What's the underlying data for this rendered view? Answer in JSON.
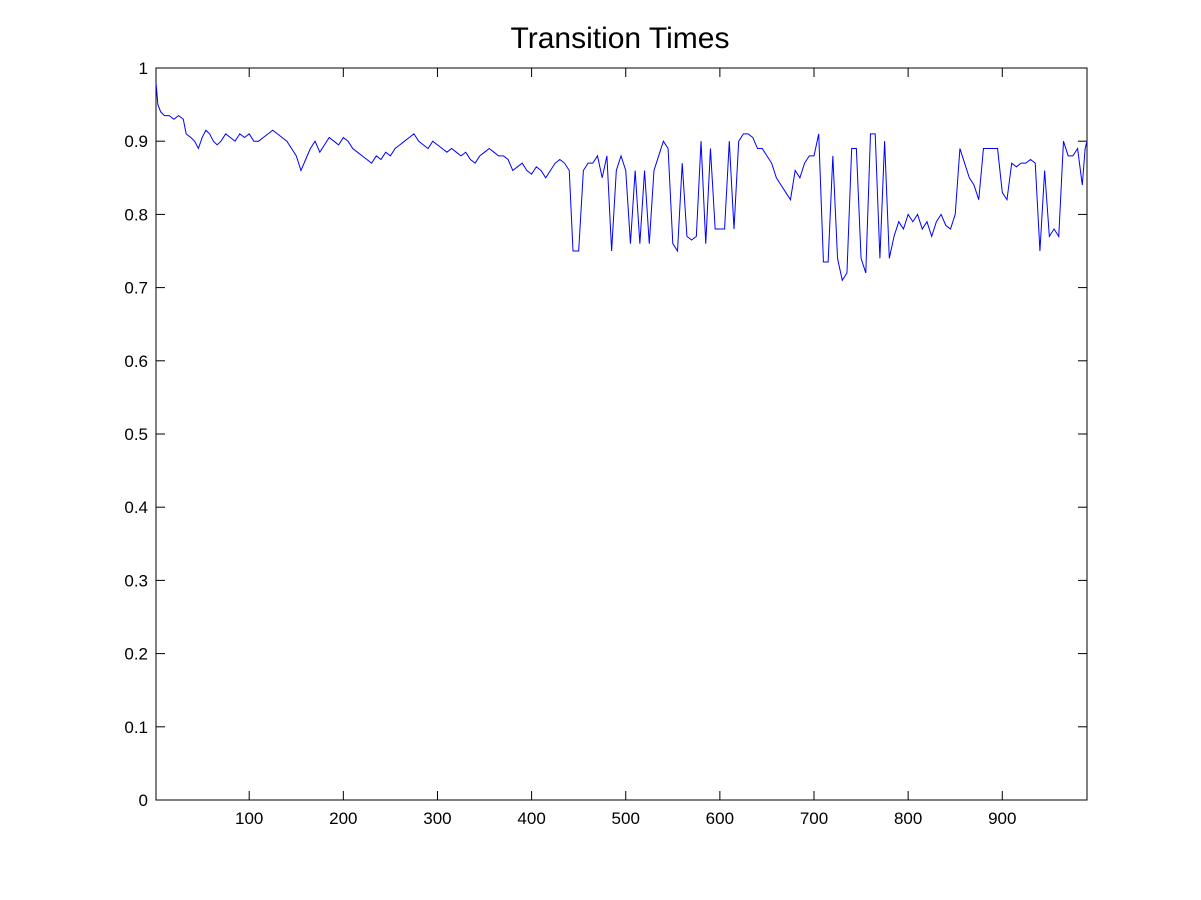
{
  "chart_data": {
    "type": "line",
    "title": "Transition Times",
    "xlabel": "",
    "ylabel": "",
    "xlim": [
      1,
      990
    ],
    "ylim": [
      0,
      1
    ],
    "x_ticks": [
      100,
      200,
      300,
      400,
      500,
      600,
      700,
      800,
      900
    ],
    "y_ticks": [
      0,
      0.1,
      0.2,
      0.3,
      0.4,
      0.5,
      0.6,
      0.7,
      0.8,
      0.9,
      1
    ],
    "x_tick_labels": [
      "100",
      "200",
      "300",
      "400",
      "500",
      "600",
      "700",
      "800",
      "900"
    ],
    "y_tick_labels": [
      "0",
      "0.1",
      "0.2",
      "0.3",
      "0.4",
      "0.5",
      "0.6",
      "0.7",
      "0.8",
      "0.9",
      "1"
    ],
    "grid": false,
    "line_color": "#0000ff",
    "series": [
      {
        "points": [
          [
            1,
            0.98
          ],
          [
            3,
            0.95
          ],
          [
            6,
            0.94
          ],
          [
            10,
            0.935
          ],
          [
            15,
            0.935
          ],
          [
            20,
            0.93
          ],
          [
            25,
            0.935
          ],
          [
            30,
            0.93
          ],
          [
            33,
            0.91
          ],
          [
            38,
            0.905
          ],
          [
            42,
            0.9
          ],
          [
            46,
            0.89
          ],
          [
            50,
            0.905
          ],
          [
            54,
            0.915
          ],
          [
            58,
            0.91
          ],
          [
            62,
            0.9
          ],
          [
            66,
            0.895
          ],
          [
            70,
            0.9
          ],
          [
            75,
            0.91
          ],
          [
            80,
            0.905
          ],
          [
            85,
            0.9
          ],
          [
            90,
            0.91
          ],
          [
            95,
            0.905
          ],
          [
            100,
            0.91
          ],
          [
            105,
            0.9
          ],
          [
            110,
            0.9
          ],
          [
            115,
            0.905
          ],
          [
            120,
            0.91
          ],
          [
            125,
            0.915
          ],
          [
            130,
            0.91
          ],
          [
            135,
            0.905
          ],
          [
            140,
            0.9
          ],
          [
            145,
            0.89
          ],
          [
            150,
            0.88
          ],
          [
            155,
            0.86
          ],
          [
            160,
            0.875
          ],
          [
            165,
            0.89
          ],
          [
            170,
            0.9
          ],
          [
            175,
            0.885
          ],
          [
            180,
            0.895
          ],
          [
            185,
            0.905
          ],
          [
            190,
            0.9
          ],
          [
            195,
            0.895
          ],
          [
            200,
            0.905
          ],
          [
            205,
            0.9
          ],
          [
            210,
            0.89
          ],
          [
            215,
            0.885
          ],
          [
            220,
            0.88
          ],
          [
            225,
            0.875
          ],
          [
            230,
            0.87
          ],
          [
            235,
            0.88
          ],
          [
            240,
            0.875
          ],
          [
            245,
            0.885
          ],
          [
            250,
            0.88
          ],
          [
            255,
            0.89
          ],
          [
            260,
            0.895
          ],
          [
            265,
            0.9
          ],
          [
            270,
            0.905
          ],
          [
            275,
            0.91
          ],
          [
            280,
            0.9
          ],
          [
            285,
            0.895
          ],
          [
            290,
            0.89
          ],
          [
            295,
            0.9
          ],
          [
            300,
            0.895
          ],
          [
            305,
            0.89
          ],
          [
            310,
            0.885
          ],
          [
            315,
            0.89
          ],
          [
            320,
            0.885
          ],
          [
            325,
            0.88
          ],
          [
            330,
            0.885
          ],
          [
            335,
            0.875
          ],
          [
            340,
            0.87
          ],
          [
            345,
            0.88
          ],
          [
            350,
            0.885
          ],
          [
            355,
            0.89
          ],
          [
            360,
            0.885
          ],
          [
            365,
            0.88
          ],
          [
            370,
            0.88
          ],
          [
            375,
            0.875
          ],
          [
            380,
            0.86
          ],
          [
            385,
            0.865
          ],
          [
            390,
            0.87
          ],
          [
            395,
            0.86
          ],
          [
            400,
            0.855
          ],
          [
            405,
            0.865
          ],
          [
            410,
            0.86
          ],
          [
            415,
            0.85
          ],
          [
            420,
            0.86
          ],
          [
            425,
            0.87
          ],
          [
            430,
            0.875
          ],
          [
            435,
            0.87
          ],
          [
            440,
            0.86
          ],
          [
            444,
            0.75
          ],
          [
            450,
            0.75
          ],
          [
            455,
            0.86
          ],
          [
            460,
            0.87
          ],
          [
            465,
            0.87
          ],
          [
            470,
            0.88
          ],
          [
            475,
            0.85
          ],
          [
            480,
            0.88
          ],
          [
            485,
            0.75
          ],
          [
            490,
            0.86
          ],
          [
            495,
            0.88
          ],
          [
            500,
            0.86
          ],
          [
            505,
            0.76
          ],
          [
            510,
            0.86
          ],
          [
            515,
            0.76
          ],
          [
            520,
            0.86
          ],
          [
            525,
            0.76
          ],
          [
            530,
            0.86
          ],
          [
            535,
            0.88
          ],
          [
            540,
            0.9
          ],
          [
            545,
            0.89
          ],
          [
            550,
            0.76
          ],
          [
            555,
            0.75
          ],
          [
            560,
            0.87
          ],
          [
            565,
            0.77
          ],
          [
            570,
            0.765
          ],
          [
            575,
            0.77
          ],
          [
            580,
            0.9
          ],
          [
            585,
            0.76
          ],
          [
            590,
            0.89
          ],
          [
            595,
            0.78
          ],
          [
            600,
            0.78
          ],
          [
            605,
            0.78
          ],
          [
            610,
            0.9
          ],
          [
            615,
            0.78
          ],
          [
            620,
            0.9
          ],
          [
            625,
            0.91
          ],
          [
            630,
            0.91
          ],
          [
            635,
            0.905
          ],
          [
            640,
            0.89
          ],
          [
            645,
            0.89
          ],
          [
            650,
            0.88
          ],
          [
            655,
            0.87
          ],
          [
            660,
            0.85
          ],
          [
            665,
            0.84
          ],
          [
            670,
            0.83
          ],
          [
            675,
            0.82
          ],
          [
            680,
            0.86
          ],
          [
            685,
            0.85
          ],
          [
            690,
            0.87
          ],
          [
            695,
            0.88
          ],
          [
            700,
            0.88
          ],
          [
            705,
            0.91
          ],
          [
            710,
            0.735
          ],
          [
            715,
            0.735
          ],
          [
            720,
            0.88
          ],
          [
            725,
            0.74
          ],
          [
            730,
            0.71
          ],
          [
            735,
            0.72
          ],
          [
            740,
            0.89
          ],
          [
            745,
            0.89
          ],
          [
            750,
            0.74
          ],
          [
            755,
            0.72
          ],
          [
            760,
            0.91
          ],
          [
            765,
            0.91
          ],
          [
            770,
            0.74
          ],
          [
            775,
            0.9
          ],
          [
            780,
            0.74
          ],
          [
            785,
            0.77
          ],
          [
            790,
            0.79
          ],
          [
            795,
            0.78
          ],
          [
            800,
            0.8
          ],
          [
            805,
            0.79
          ],
          [
            810,
            0.8
          ],
          [
            815,
            0.78
          ],
          [
            820,
            0.79
          ],
          [
            825,
            0.77
          ],
          [
            830,
            0.79
          ],
          [
            835,
            0.8
          ],
          [
            840,
            0.785
          ],
          [
            845,
            0.78
          ],
          [
            850,
            0.8
          ],
          [
            855,
            0.89
          ],
          [
            860,
            0.87
          ],
          [
            865,
            0.85
          ],
          [
            870,
            0.84
          ],
          [
            875,
            0.82
          ],
          [
            880,
            0.89
          ],
          [
            885,
            0.89
          ],
          [
            890,
            0.89
          ],
          [
            895,
            0.89
          ],
          [
            900,
            0.83
          ],
          [
            905,
            0.82
          ],
          [
            910,
            0.87
          ],
          [
            915,
            0.865
          ],
          [
            920,
            0.87
          ],
          [
            925,
            0.87
          ],
          [
            930,
            0.875
          ],
          [
            935,
            0.87
          ],
          [
            940,
            0.75
          ],
          [
            945,
            0.86
          ],
          [
            950,
            0.77
          ],
          [
            955,
            0.78
          ],
          [
            960,
            0.77
          ],
          [
            965,
            0.9
          ],
          [
            970,
            0.88
          ],
          [
            975,
            0.88
          ],
          [
            980,
            0.89
          ],
          [
            985,
            0.84
          ],
          [
            988,
            0.89
          ],
          [
            990,
            0.9
          ]
        ]
      }
    ]
  }
}
